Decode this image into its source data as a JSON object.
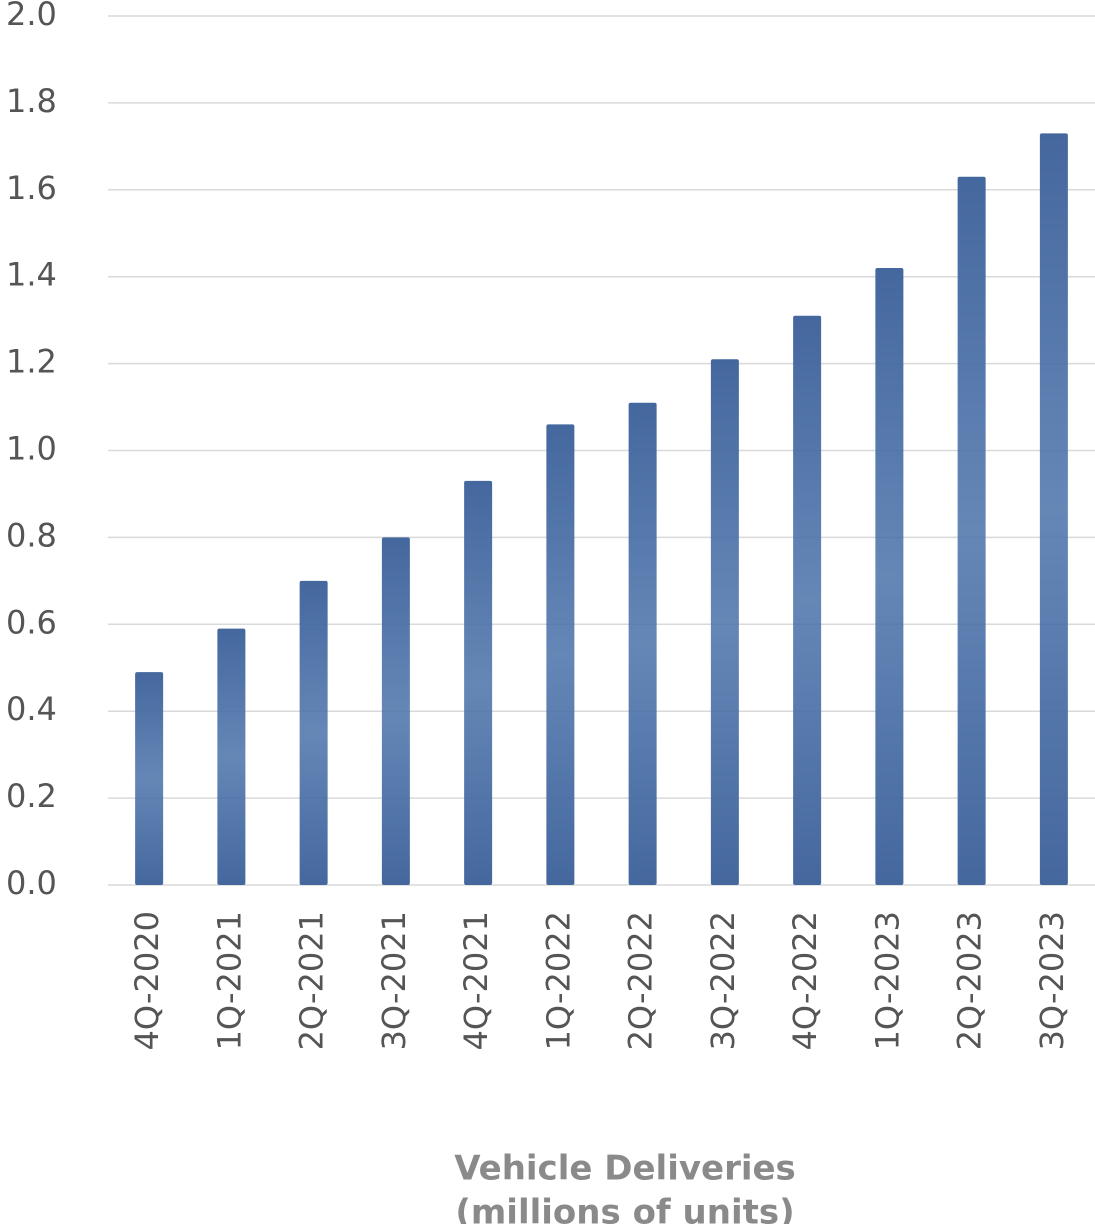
{
  "chart_data": {
    "type": "bar",
    "categories": [
      "4Q-2020",
      "1Q-2021",
      "2Q-2021",
      "3Q-2021",
      "4Q-2021",
      "1Q-2022",
      "2Q-2022",
      "3Q-2022",
      "4Q-2022",
      "1Q-2023",
      "2Q-2023",
      "3Q-2023"
    ],
    "values": [
      0.49,
      0.59,
      0.7,
      0.8,
      0.93,
      1.06,
      1.11,
      1.21,
      1.31,
      1.42,
      1.63,
      1.73
    ],
    "color": "#44679e",
    "x_label": [
      "Vehicle Deliveries",
      "(millions of units)"
    ],
    "ylim": [
      0,
      2.0
    ],
    "yticks": [
      {
        "value": 0,
        "label": "0.0"
      },
      0.2,
      0.4,
      0.6,
      0.8,
      {
        "value": 1.0,
        "label": "1.0"
      },
      1.2,
      1.4,
      1.6,
      1.8,
      {
        "value": 2.0,
        "label": "2.0"
      }
    ],
    "grid": true
  }
}
